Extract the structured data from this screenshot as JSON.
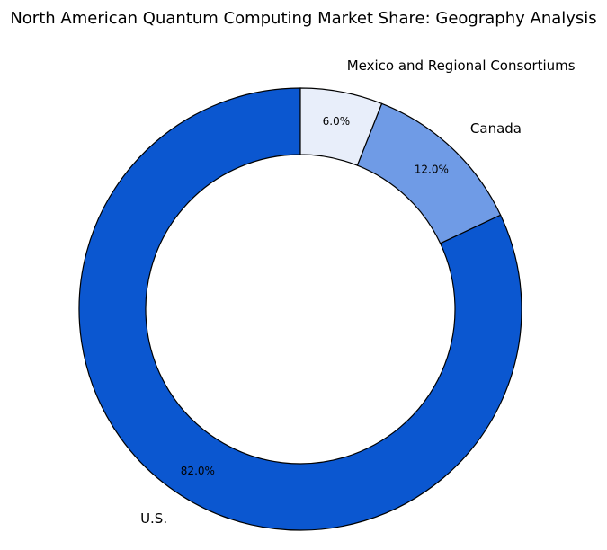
{
  "chart_data": {
    "type": "pie",
    "style": "donut",
    "title": "North American Quantum Computing Market Share: Geography Analysis",
    "unit": "%",
    "slices": [
      {
        "label": "U.S.",
        "value": 82.0,
        "pct_label": "82.0%",
        "color": "#0b57d0"
      },
      {
        "label": "Canada",
        "value": 12.0,
        "pct_label": "12.0%",
        "color": "#6f9be6"
      },
      {
        "label": "Mexico and Regional Consortiums",
        "value": 6.0,
        "pct_label": "6.0%",
        "color": "#e8eefa"
      }
    ],
    "start_angle": "12 o'clock",
    "direction": "clockwise",
    "edge_color": "#000000",
    "legend": "none"
  }
}
